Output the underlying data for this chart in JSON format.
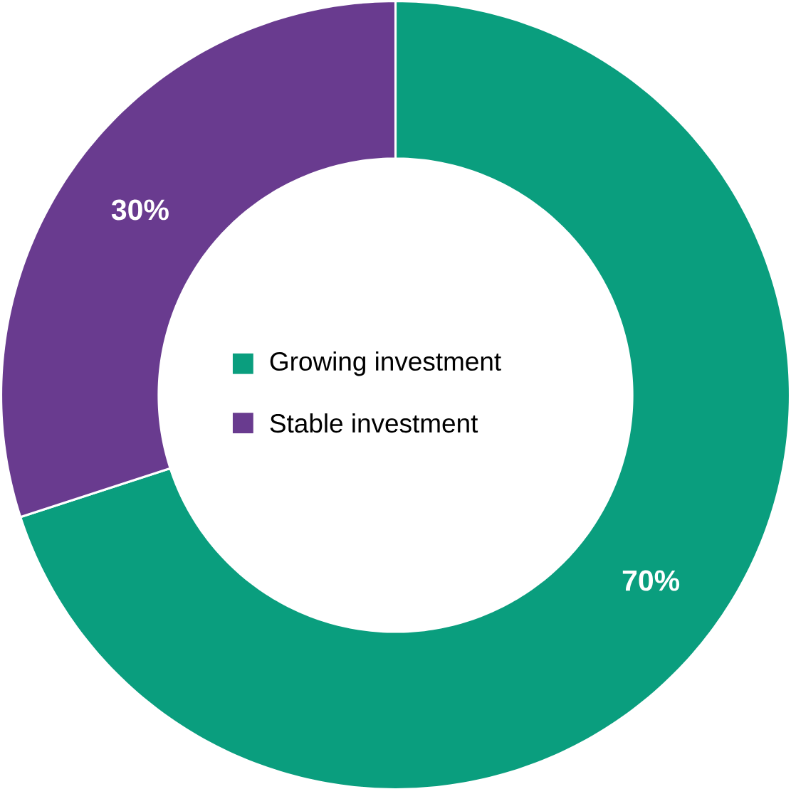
{
  "chart_data": {
    "type": "donut",
    "categories": [
      "Growing investment",
      "Stable investment"
    ],
    "values": [
      70,
      30
    ],
    "colors": [
      "#0a9e7e",
      "#693b8f"
    ],
    "value_labels": [
      "70%",
      "30%"
    ],
    "legend": "center"
  }
}
